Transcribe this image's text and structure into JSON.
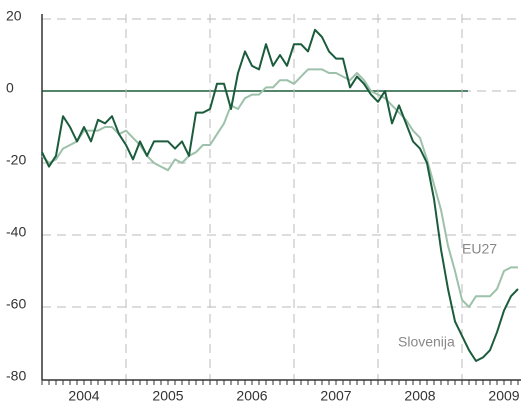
{
  "chart_data": {
    "type": "line",
    "categories": [
      null,
      null,
      null,
      null,
      null,
      null,
      "2004",
      null,
      null,
      null,
      null,
      null,
      null,
      null,
      null,
      null,
      null,
      null,
      "2005",
      null,
      null,
      null,
      null,
      null,
      null,
      null,
      null,
      null,
      null,
      null,
      "2006",
      null,
      null,
      null,
      null,
      null,
      null,
      null,
      null,
      null,
      null,
      null,
      "2007",
      null,
      null,
      null,
      null,
      null,
      null,
      null,
      null,
      null,
      null,
      null,
      "2008",
      null,
      null,
      null,
      null,
      null,
      null,
      null,
      null,
      null,
      null,
      null,
      "2009",
      null,
      null
    ],
    "series": [
      {
        "name": "Slovenija",
        "color": "#1b5c3c",
        "values": [
          -17,
          -21,
          -18,
          -7,
          -10,
          -14,
          -10,
          -14,
          -8,
          -9,
          -7,
          -12,
          -15,
          -19,
          -14,
          -18,
          -14,
          -14,
          -14,
          -16,
          -14,
          -18,
          -6,
          -6,
          -5,
          2,
          2,
          -5,
          5,
          11,
          7,
          6,
          13,
          7,
          10,
          7,
          13,
          13,
          11,
          17,
          15,
          11,
          9,
          9,
          1,
          4,
          2,
          -1,
          -3,
          0,
          -9,
          -4,
          -9,
          -14,
          -16,
          -20,
          -30,
          -44,
          -55,
          -64,
          -68,
          -72,
          -75,
          -74,
          -72,
          -67,
          -61,
          -57,
          -55
        ]
      },
      {
        "name": "EU27",
        "color": "#9dc1aa",
        "values": [
          -18,
          -20,
          -19,
          -16,
          -15,
          -14,
          -11,
          -11,
          -11,
          -10,
          -10,
          -12,
          -11,
          -13,
          -15,
          -18,
          -20,
          -21,
          -22,
          -19,
          -20,
          -18,
          -17,
          -15,
          -15,
          -12,
          -9,
          -4,
          -5,
          -2,
          -1,
          -1,
          1,
          1,
          3,
          3,
          2,
          4,
          6,
          6,
          6,
          5,
          5,
          4,
          3,
          5,
          3,
          0,
          -1,
          -2,
          -4,
          -6,
          -8,
          -11,
          -13,
          -19,
          -26,
          -33,
          -43,
          -50,
          -58,
          -60,
          -57,
          -57,
          -57,
          -55,
          -50,
          -49,
          -49
        ]
      }
    ],
    "ylim": [
      -80,
      20
    ],
    "yticks": [
      -80,
      -60,
      -40,
      -20,
      0,
      20
    ],
    "grid": true
  }
}
